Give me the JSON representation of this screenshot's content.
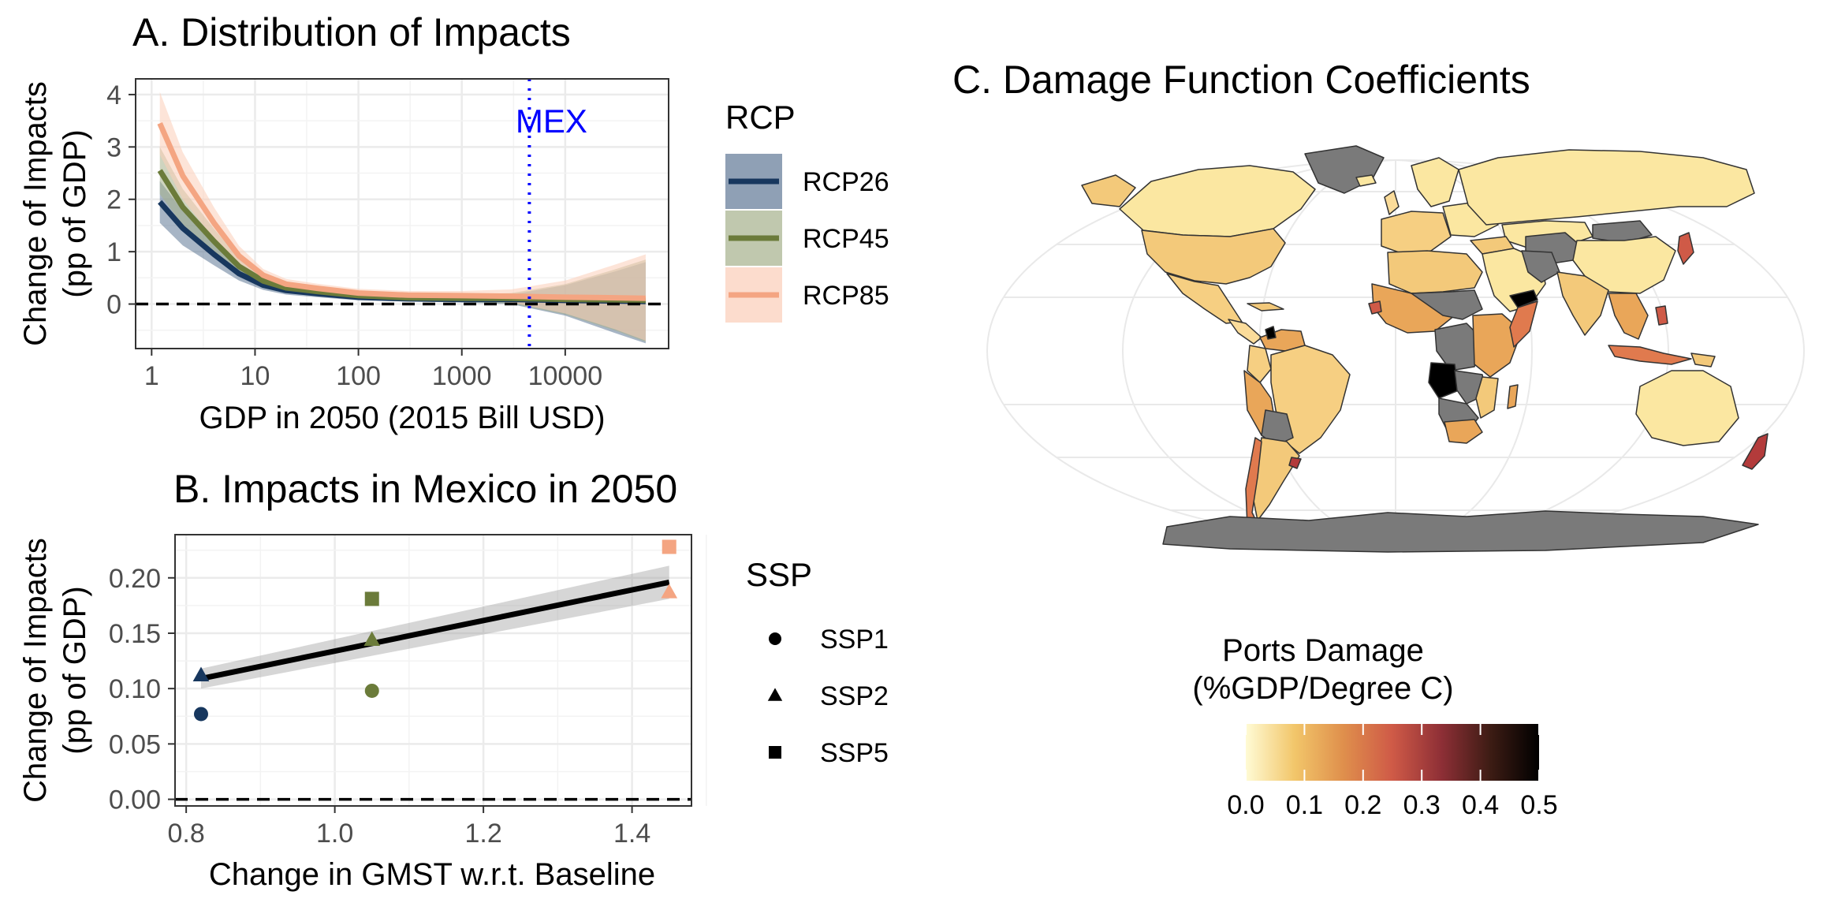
{
  "chart_data": [
    {
      "panel": "A",
      "type": "line",
      "title": "A. Distribution of Impacts",
      "xlabel": "GDP in 2050 (2015 Bill USD)",
      "ylabel_lines": [
        "Change of Impacts",
        "(pp of GDP)"
      ],
      "x_scale": "log",
      "x_ticks": [
        1,
        10,
        100,
        1000,
        10000
      ],
      "x_tick_labels": [
        "1",
        "10",
        "100",
        "1000",
        "10000"
      ],
      "xlim": [
        0.7,
        100000
      ],
      "y_ticks": [
        0,
        1,
        2,
        3,
        4
      ],
      "y_tick_labels": [
        "0",
        "1",
        "2",
        "3",
        "4"
      ],
      "ylim": [
        -0.85,
        4.3
      ],
      "grid": true,
      "legend_title": "RCP",
      "legend_position": "right",
      "reference_line": {
        "y": 0,
        "style": "dashed"
      },
      "annotation": {
        "label": "MEX",
        "x": 4500,
        "style": "dotted",
        "color": "#0000ff"
      },
      "series": [
        {
          "name": "RCP26",
          "color": "#17375e",
          "band_color": "#5f7896",
          "x": [
            1.2,
            2,
            4,
            7,
            12,
            20,
            40,
            100,
            300,
            1000,
            3000,
            10000,
            30000,
            60000
          ],
          "y": [
            1.95,
            1.45,
            0.95,
            0.58,
            0.36,
            0.26,
            0.2,
            0.13,
            0.1,
            0.09,
            0.09,
            0.07,
            0.06,
            0.05
          ],
          "lo": [
            1.55,
            1.12,
            0.74,
            0.45,
            0.27,
            0.18,
            0.13,
            0.07,
            0.05,
            0.03,
            0.0,
            -0.22,
            -0.55,
            -0.75
          ],
          "hi": [
            2.35,
            1.78,
            1.16,
            0.71,
            0.45,
            0.34,
            0.27,
            0.19,
            0.15,
            0.15,
            0.18,
            0.36,
            0.62,
            0.8
          ]
        },
        {
          "name": "RCP45",
          "color": "#6b7b3a",
          "band_color": "#a5b08b",
          "x": [
            1.2,
            2,
            4,
            7,
            12,
            20,
            40,
            100,
            300,
            1000,
            3000,
            10000,
            30000,
            60000
          ],
          "y": [
            2.55,
            1.85,
            1.2,
            0.72,
            0.44,
            0.31,
            0.24,
            0.16,
            0.12,
            0.11,
            0.11,
            0.09,
            0.08,
            0.07
          ],
          "lo": [
            2.1,
            1.5,
            0.96,
            0.57,
            0.34,
            0.22,
            0.16,
            0.09,
            0.06,
            0.04,
            0.01,
            -0.2,
            -0.5,
            -0.72
          ],
          "hi": [
            3.0,
            2.2,
            1.44,
            0.87,
            0.54,
            0.4,
            0.32,
            0.23,
            0.18,
            0.18,
            0.21,
            0.38,
            0.66,
            0.85
          ]
        },
        {
          "name": "RCP85",
          "color": "#f4a582",
          "band_color": "#fbcdb8",
          "x": [
            1.2,
            2,
            4,
            7,
            12,
            20,
            40,
            100,
            300,
            1000,
            3000,
            10000,
            30000,
            60000
          ],
          "y": [
            3.45,
            2.45,
            1.55,
            0.92,
            0.55,
            0.38,
            0.3,
            0.21,
            0.17,
            0.16,
            0.15,
            0.13,
            0.12,
            0.11
          ],
          "lo": [
            2.85,
            2.0,
            1.25,
            0.73,
            0.43,
            0.28,
            0.21,
            0.13,
            0.09,
            0.07,
            0.03,
            -0.18,
            -0.48,
            -0.7
          ],
          "hi": [
            4.05,
            2.9,
            1.85,
            1.11,
            0.67,
            0.48,
            0.39,
            0.29,
            0.25,
            0.25,
            0.28,
            0.45,
            0.75,
            0.95
          ]
        }
      ]
    },
    {
      "panel": "B",
      "type": "scatter",
      "title": "B. Impacts in Mexico in 2050",
      "xlabel": "Change in GMST w.r.t. Baseline",
      "ylabel_lines": [
        "Change of Impacts",
        "(pp of GDP)"
      ],
      "x_ticks": [
        0.8,
        1.0,
        1.2,
        1.4
      ],
      "x_tick_labels": [
        "0.8",
        "1.0",
        "1.2",
        "1.4"
      ],
      "xlim": [
        0.785,
        1.48
      ],
      "y_ticks": [
        0,
        0.05,
        0.1,
        0.15,
        0.2
      ],
      "y_tick_labels": [
        "0.00",
        "0.05",
        "0.10",
        "0.15",
        "0.20"
      ],
      "ylim": [
        -0.006,
        0.239
      ],
      "grid": true,
      "legend_title": "SSP",
      "legend_position": "right",
      "legend_items": [
        {
          "name": "SSP1",
          "shape": "circle"
        },
        {
          "name": "SSP2",
          "shape": "triangle"
        },
        {
          "name": "SSP5",
          "shape": "square"
        }
      ],
      "reference_line": {
        "y": 0,
        "style": "dashed"
      },
      "points": [
        {
          "x": 0.82,
          "y": 0.077,
          "ssp": "SSP1",
          "rcp": "RCP26"
        },
        {
          "x": 0.82,
          "y": 0.112,
          "ssp": "SSP2",
          "rcp": "RCP26"
        },
        {
          "x": 1.05,
          "y": 0.098,
          "ssp": "SSP1",
          "rcp": "RCP45"
        },
        {
          "x": 1.05,
          "y": 0.144,
          "ssp": "SSP2",
          "rcp": "RCP45"
        },
        {
          "x": 1.05,
          "y": 0.181,
          "ssp": "SSP5",
          "rcp": "RCP45"
        },
        {
          "x": 1.45,
          "y": 0.187,
          "ssp": "SSP2",
          "rcp": "RCP85"
        },
        {
          "x": 1.45,
          "y": 0.228,
          "ssp": "SSP5",
          "rcp": "RCP85"
        }
      ],
      "fit": {
        "x": [
          0.82,
          1.45
        ],
        "y": [
          0.109,
          0.196
        ],
        "lo": [
          0.1,
          0.181
        ],
        "hi": [
          0.118,
          0.211
        ]
      },
      "rcp_colors": {
        "RCP26": "#17375e",
        "RCP45": "#6b7b3a",
        "RCP85": "#f4a582"
      }
    },
    {
      "panel": "C",
      "type": "heatmap",
      "title": "C. Damage Function Coefficients",
      "legend_title_lines": [
        "Ports Damage",
        "(%GDP/Degree C)"
      ],
      "color_scale": {
        "min": 0.0,
        "max": 0.5,
        "ticks": [
          0.0,
          0.1,
          0.2,
          0.3,
          0.4,
          0.5
        ],
        "tick_labels": [
          "0.0",
          "0.1",
          "0.2",
          "0.3",
          "0.4",
          "0.5"
        ],
        "stops": [
          "#fffbd5",
          "#f2c66a",
          "#df8f4c",
          "#cf5a47",
          "#8e2f36",
          "#3d1c14",
          "#000000"
        ]
      },
      "no_data_color": "#7a7a7a",
      "projection": "Robinson",
      "graticule_color": "#e9e9e9"
    }
  ]
}
